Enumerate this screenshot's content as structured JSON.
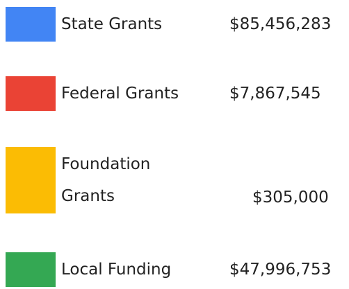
{
  "items": [
    {
      "label": "State Grants",
      "amount": "$85,456,283",
      "color": "#4285f4"
    },
    {
      "label": "Federal Grants",
      "amount": "$7,867,545",
      "color": "#ea4335"
    },
    {
      "label": "Foundation Grants",
      "amount": "$305,000",
      "color": "#fbbc04"
    },
    {
      "label": "Local Funding",
      "amount": "$47,996,753",
      "color": "#34a853"
    }
  ]
}
